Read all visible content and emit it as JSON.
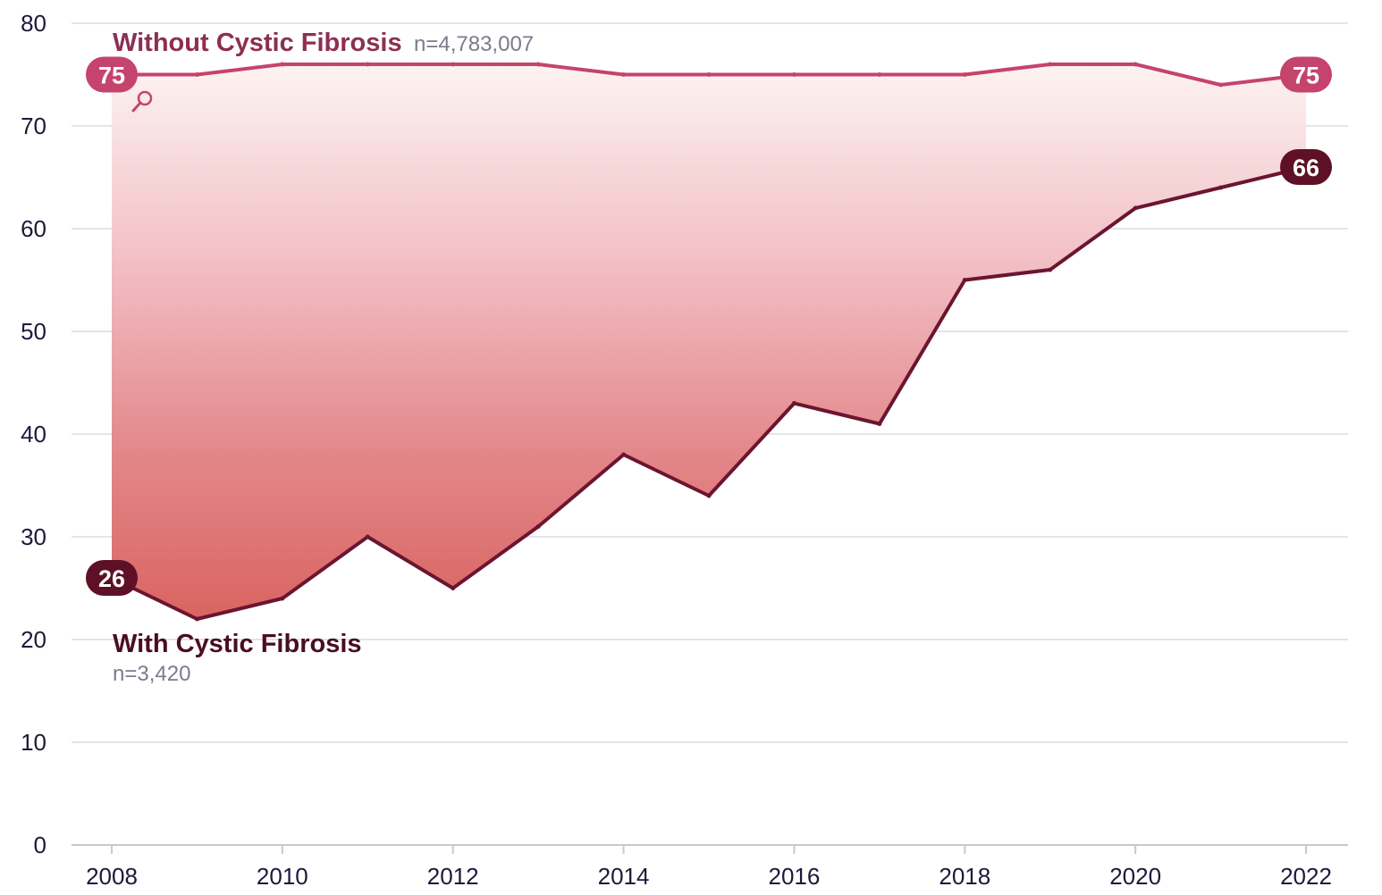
{
  "chart_data": {
    "type": "line",
    "x": [
      2008,
      2009,
      2010,
      2011,
      2012,
      2013,
      2014,
      2015,
      2016,
      2017,
      2018,
      2019,
      2020,
      2021,
      2022
    ],
    "series": [
      {
        "name": "Without Cystic Fibrosis",
        "n_label": "n=4,783,007",
        "color": "#c4446e",
        "values": [
          75,
          75,
          76,
          76,
          76,
          76,
          75,
          75,
          75,
          75,
          75,
          76,
          76,
          74,
          75
        ],
        "start_label": "75",
        "end_label": "75"
      },
      {
        "name": "With Cystic Fibrosis",
        "n_label": "n=3,420",
        "color": "#6b1530",
        "values": [
          26,
          22,
          24,
          30,
          25,
          31,
          38,
          34,
          43,
          41,
          55,
          56,
          62,
          64,
          66
        ],
        "start_label": "26",
        "end_label": "66"
      }
    ],
    "xticks": [
      "2008",
      "2010",
      "2012",
      "2014",
      "2016",
      "2018",
      "2020",
      "2022"
    ],
    "yticks": [
      "0",
      "10",
      "20",
      "30",
      "40",
      "50",
      "60",
      "70",
      "80"
    ],
    "xlim": [
      2008,
      2022
    ],
    "ylim": [
      0,
      80
    ],
    "grid": true,
    "fill_between": true
  }
}
